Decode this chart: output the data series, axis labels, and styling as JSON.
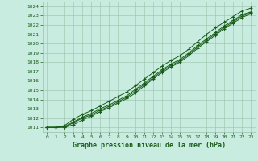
{
  "title": "Graphe pression niveau de la mer (hPa)",
  "bg_color": "#c8ede0",
  "line_color": "#1a5c1a",
  "grid_color": "#9abfaa",
  "text_color": "#1a5c1a",
  "xlim": [
    -0.5,
    23.5
  ],
  "ylim": [
    1010.5,
    1024.5
  ],
  "yticks": [
    1011,
    1012,
    1013,
    1014,
    1015,
    1016,
    1017,
    1018,
    1019,
    1020,
    1021,
    1022,
    1023,
    1024
  ],
  "xticks": [
    0,
    1,
    2,
    3,
    4,
    5,
    6,
    7,
    8,
    9,
    10,
    11,
    12,
    13,
    14,
    15,
    16,
    17,
    18,
    19,
    20,
    21,
    22,
    23
  ],
  "x": [
    0,
    1,
    2,
    3,
    4,
    5,
    6,
    7,
    8,
    9,
    10,
    11,
    12,
    13,
    14,
    15,
    16,
    17,
    18,
    19,
    20,
    21,
    22,
    23
  ],
  "y_mean": [
    1011.0,
    1011.0,
    1011.1,
    1011.6,
    1012.1,
    1012.5,
    1013.0,
    1013.4,
    1013.9,
    1014.4,
    1015.1,
    1015.8,
    1016.5,
    1017.2,
    1017.8,
    1018.3,
    1019.0,
    1019.8,
    1020.5,
    1021.2,
    1021.9,
    1022.5,
    1023.1,
    1023.4
  ],
  "y_min": [
    1011.0,
    1011.0,
    1011.0,
    1011.3,
    1011.8,
    1012.2,
    1012.7,
    1013.1,
    1013.6,
    1014.1,
    1014.7,
    1015.5,
    1016.2,
    1016.9,
    1017.5,
    1018.0,
    1018.7,
    1019.5,
    1020.2,
    1020.9,
    1021.6,
    1022.2,
    1022.8,
    1023.2
  ],
  "y_max": [
    1011.0,
    1011.0,
    1011.2,
    1011.9,
    1012.4,
    1012.8,
    1013.3,
    1013.8,
    1014.3,
    1014.8,
    1015.5,
    1016.2,
    1016.9,
    1017.6,
    1018.2,
    1018.7,
    1019.4,
    1020.2,
    1021.0,
    1021.7,
    1022.3,
    1022.9,
    1023.5,
    1023.8
  ],
  "y_extra": [
    1011.0,
    1011.0,
    1011.05,
    1011.5,
    1012.0,
    1012.35,
    1012.85,
    1013.25,
    1013.75,
    1014.25,
    1014.9,
    1015.65,
    1016.35,
    1017.05,
    1017.65,
    1018.15,
    1018.85,
    1019.65,
    1020.35,
    1021.05,
    1021.75,
    1022.35,
    1022.95,
    1023.3
  ]
}
